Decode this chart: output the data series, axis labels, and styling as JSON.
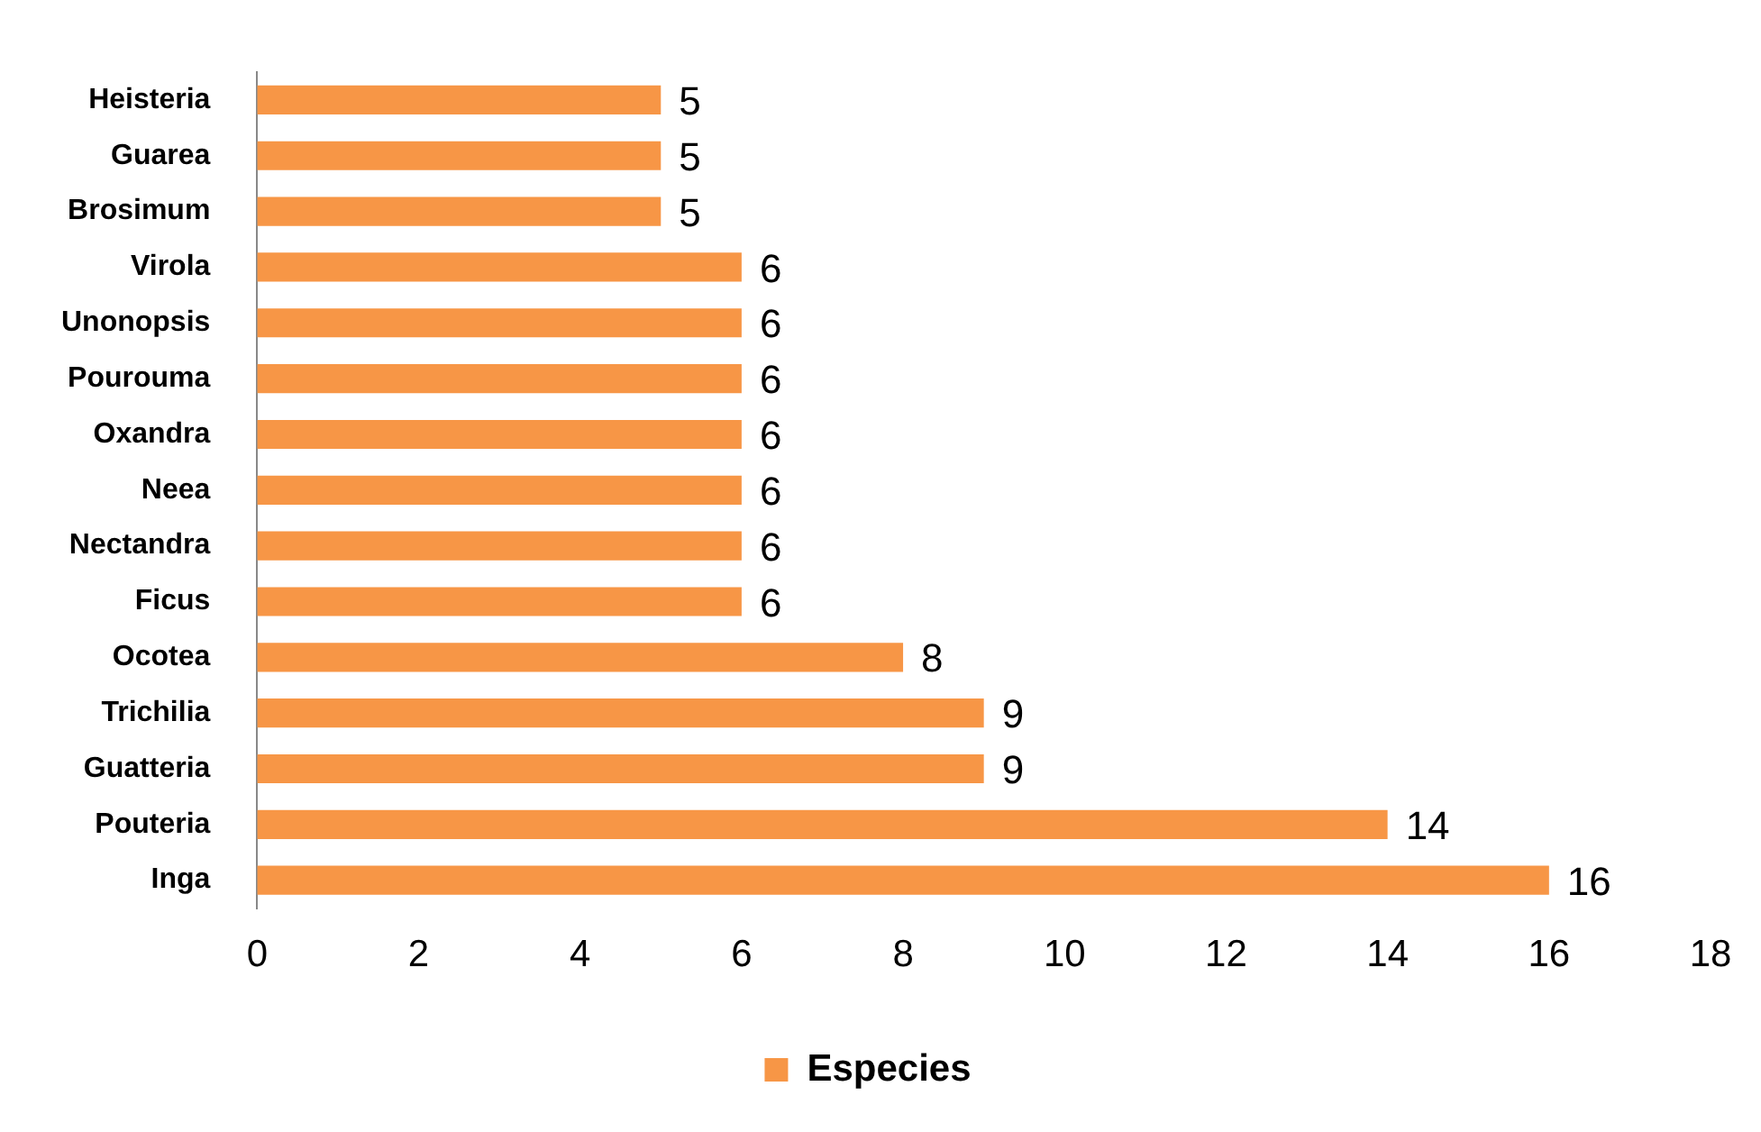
{
  "chart_data": {
    "type": "bar",
    "orientation": "horizontal",
    "categories": [
      "Heisteria",
      "Guarea",
      "Brosimum",
      "Virola",
      "Unonopsis",
      "Pourouma",
      "Oxandra",
      "Neea",
      "Nectandra",
      "Ficus",
      "Ocotea",
      "Trichilia",
      "Guatteria",
      "Pouteria",
      "Inga"
    ],
    "series": [
      {
        "name": "Especies",
        "color": "#f79646",
        "values": [
          5,
          5,
          5,
          6,
          6,
          6,
          6,
          6,
          6,
          6,
          8,
          9,
          9,
          14,
          16
        ]
      }
    ],
    "xlim": [
      0,
      18
    ],
    "xticks": [
      0,
      2,
      4,
      6,
      8,
      10,
      12,
      14,
      16,
      18
    ],
    "grid": false,
    "legend": "bottom",
    "data_labels": true
  }
}
